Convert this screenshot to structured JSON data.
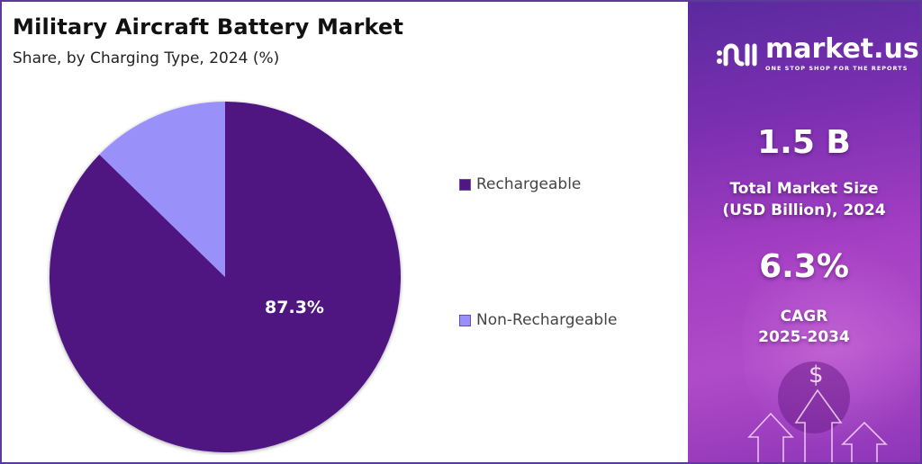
{
  "header": {
    "title": "Military Aircraft Battery Market",
    "subtitle": "Share, by Charging Type, 2024 (%)"
  },
  "chart_data": {
    "type": "pie",
    "title": "Military Aircraft Battery Market",
    "subtitle": "Share, by Charging Type, 2024 (%)",
    "categories": [
      "Rechargeable",
      "Non-Rechargeable"
    ],
    "values": [
      87.3,
      12.7
    ],
    "colors": [
      "#4f1781",
      "#9990fa"
    ],
    "data_labels": [
      "87.3%",
      ""
    ],
    "legend_position": "right",
    "start_angle_deg": 0,
    "direction": "clockwise"
  },
  "legend": [
    {
      "label": "Rechargeable",
      "color": "#4f1781"
    },
    {
      "label": "Non-Rechargeable",
      "color": "#9990fa"
    }
  ],
  "pie_label": "87.3%",
  "sidebar": {
    "logo_name": "market.us",
    "logo_tagline": "ONE STOP SHOP FOR THE REPORTS",
    "market_size_value": "1.5 B",
    "market_size_label_line1": "Total Market Size",
    "market_size_label_line2": "(USD Billion), 2024",
    "cagr_value": "6.3%",
    "cagr_label_line1": "CAGR",
    "cagr_label_line2": "2025-2034",
    "dollar_symbol": "$"
  },
  "colors": {
    "border": "#5b3a9a",
    "primary": "#4f1781",
    "secondary": "#9990fa"
  }
}
